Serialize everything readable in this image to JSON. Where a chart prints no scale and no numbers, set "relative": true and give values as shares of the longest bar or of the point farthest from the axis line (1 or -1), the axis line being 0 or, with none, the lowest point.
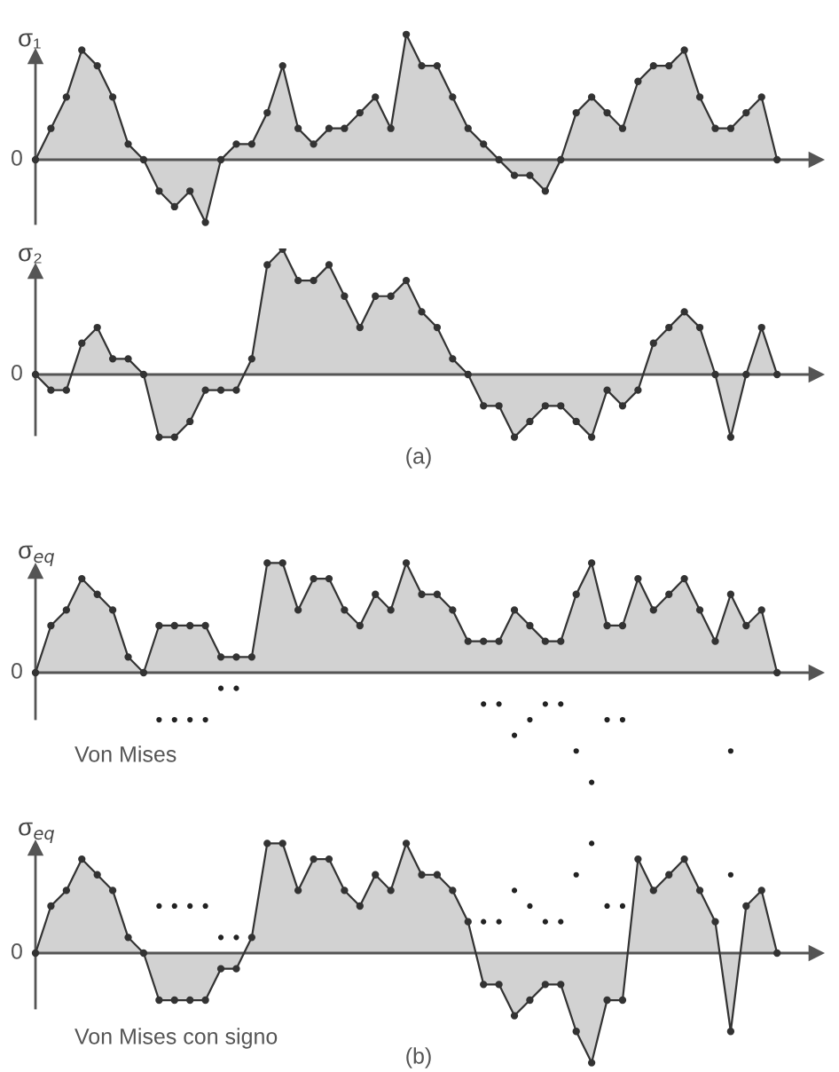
{
  "chart_data": [
    {
      "type": "area",
      "relative": true,
      "marker": "circle",
      "ylabel": "σ₁",
      "categories": [
        null,
        null,
        null,
        null,
        null,
        null,
        null,
        null,
        null,
        null,
        null,
        null,
        null,
        null,
        null,
        null,
        null,
        null,
        null,
        null,
        null,
        null,
        null,
        null,
        null,
        null,
        null,
        null,
        null,
        null,
        null,
        null,
        null,
        null,
        null,
        null,
        null,
        null,
        null,
        null,
        null,
        null,
        null,
        null,
        null,
        null,
        null,
        null,
        null
      ],
      "annotations": [
        "0"
      ],
      "series": [
        {
          "color": "#333333",
          "values": [
            0,
            0.25,
            0.5,
            0.875,
            0.75,
            0.5,
            0.125,
            0,
            -0.25,
            -0.375,
            -0.25,
            -0.5,
            0,
            0.125,
            0.125,
            0.375,
            0.75,
            0.25,
            0.125,
            0.25,
            0.25,
            0.375,
            0.5,
            0.25,
            1,
            0.75,
            0.75,
            0.5,
            0.25,
            0.125,
            0,
            -0.125,
            -0.125,
            -0.25,
            0,
            0.375,
            0.5,
            0.375,
            0.25,
            0.625,
            0.75,
            0.75,
            0.875,
            0.5,
            0.25,
            0.25,
            0.375,
            0.5,
            0
          ]
        }
      ]
    },
    {
      "type": "area",
      "relative": true,
      "marker": "circle",
      "ylabel": "σ₂",
      "categories": [
        null,
        null,
        null,
        null,
        null,
        null,
        null,
        null,
        null,
        null,
        null,
        null,
        null,
        null,
        null,
        null,
        null,
        null,
        null,
        null,
        null,
        null,
        null,
        null,
        null,
        null,
        null,
        null,
        null,
        null,
        null,
        null,
        null,
        null,
        null,
        null,
        null,
        null,
        null,
        null,
        null,
        null,
        null,
        null,
        null,
        null,
        null,
        null,
        null
      ],
      "annotations": [
        "0",
        "(a)"
      ],
      "series": [
        {
          "color": "#333333",
          "values": [
            0,
            -0.125,
            -0.125,
            0.25,
            0.375,
            0.125,
            0.125,
            0,
            -0.5,
            -0.5,
            -0.375,
            -0.125,
            -0.125,
            -0.125,
            0.125,
            0.875,
            1,
            0.75,
            0.75,
            0.875,
            0.625,
            0.375,
            0.625,
            0.625,
            0.75,
            0.5,
            0.375,
            0.125,
            0,
            -0.25,
            -0.25,
            -0.5,
            -0.375,
            -0.25,
            -0.25,
            -0.375,
            -0.5,
            -0.125,
            -0.25,
            -0.125,
            0.25,
            0.375,
            0.5,
            0.375,
            0,
            -0.5,
            0,
            0.375,
            0
          ]
        }
      ]
    },
    {
      "type": "area",
      "relative": true,
      "marker": "circle",
      "ylabel": "σ$_{eq}$",
      "categories": [
        null,
        null,
        null,
        null,
        null,
        null,
        null,
        null,
        null,
        null,
        null,
        null,
        null,
        null,
        null,
        null,
        null,
        null,
        null,
        null,
        null,
        null,
        null,
        null,
        null,
        null,
        null,
        null,
        null,
        null,
        null,
        null,
        null,
        null,
        null,
        null,
        null,
        null,
        null,
        null,
        null,
        null,
        null,
        null,
        null,
        null,
        null,
        null,
        null
      ],
      "annotations": [
        "0",
        "Von Mises"
      ],
      "series": [
        {
          "color": "#333333",
          "values": [
            0,
            0.429,
            0.571,
            0.857,
            0.714,
            0.571,
            0.143,
            0,
            0.429,
            0.429,
            0.429,
            0.429,
            0.143,
            0.143,
            0.143,
            1,
            1,
            0.571,
            0.857,
            0.857,
            0.571,
            0.429,
            0.714,
            0.571,
            1,
            0.714,
            0.714,
            0.571,
            0.286,
            0.286,
            0.286,
            0.571,
            0.429,
            0.286,
            0.286,
            0.714,
            1,
            0.429,
            0.429,
            0.857,
            0.571,
            0.714,
            0.857,
            0.571,
            0.286,
            0.714,
            0.429,
            0.571,
            0
          ]
        },
        {
          "type": "scatter",
          "color": "#222222",
          "values": [
            null,
            null,
            null,
            null,
            null,
            null,
            null,
            null,
            -0.429,
            -0.429,
            -0.429,
            -0.429,
            -0.143,
            -0.143,
            null,
            null,
            null,
            null,
            null,
            null,
            null,
            null,
            null,
            null,
            null,
            null,
            null,
            null,
            null,
            -0.286,
            -0.286,
            -0.571,
            -0.429,
            -0.286,
            -0.286,
            -0.714,
            -1,
            -0.429,
            -0.429,
            null,
            null,
            null,
            null,
            null,
            null,
            -0.714,
            null,
            null,
            null
          ]
        }
      ]
    },
    {
      "type": "area",
      "relative": true,
      "marker": "circle",
      "ylabel": "σ$_{eq}$",
      "categories": [
        null,
        null,
        null,
        null,
        null,
        null,
        null,
        null,
        null,
        null,
        null,
        null,
        null,
        null,
        null,
        null,
        null,
        null,
        null,
        null,
        null,
        null,
        null,
        null,
        null,
        null,
        null,
        null,
        null,
        null,
        null,
        null,
        null,
        null,
        null,
        null,
        null,
        null,
        null,
        null,
        null,
        null,
        null,
        null,
        null,
        null,
        null,
        null,
        null
      ],
      "annotations": [
        "0",
        "Von Mises con signo",
        "(b)"
      ],
      "series": [
        {
          "color": "#333333",
          "values": [
            0,
            0.429,
            0.571,
            0.857,
            0.714,
            0.571,
            0.143,
            0,
            -0.429,
            -0.429,
            -0.429,
            -0.429,
            -0.143,
            -0.143,
            0.143,
            1,
            1,
            0.571,
            0.857,
            0.857,
            0.571,
            0.429,
            0.714,
            0.571,
            1,
            0.714,
            0.714,
            0.571,
            0.286,
            -0.286,
            -0.286,
            -0.571,
            -0.429,
            -0.286,
            -0.286,
            -0.714,
            -1,
            -0.429,
            -0.429,
            0.857,
            0.571,
            0.714,
            0.857,
            0.571,
            0.286,
            -0.714,
            0.429,
            0.571,
            0
          ]
        },
        {
          "type": "scatter",
          "color": "#222222",
          "values": [
            null,
            null,
            null,
            null,
            null,
            null,
            null,
            null,
            0.429,
            0.429,
            0.429,
            0.429,
            0.143,
            0.143,
            null,
            null,
            null,
            null,
            null,
            null,
            null,
            null,
            null,
            null,
            null,
            null,
            null,
            null,
            null,
            0.286,
            0.286,
            0.571,
            0.429,
            0.286,
            0.286,
            0.714,
            1,
            0.429,
            0.429,
            null,
            null,
            null,
            null,
            null,
            null,
            0.714,
            null,
            null,
            null
          ]
        }
      ]
    }
  ]
}
